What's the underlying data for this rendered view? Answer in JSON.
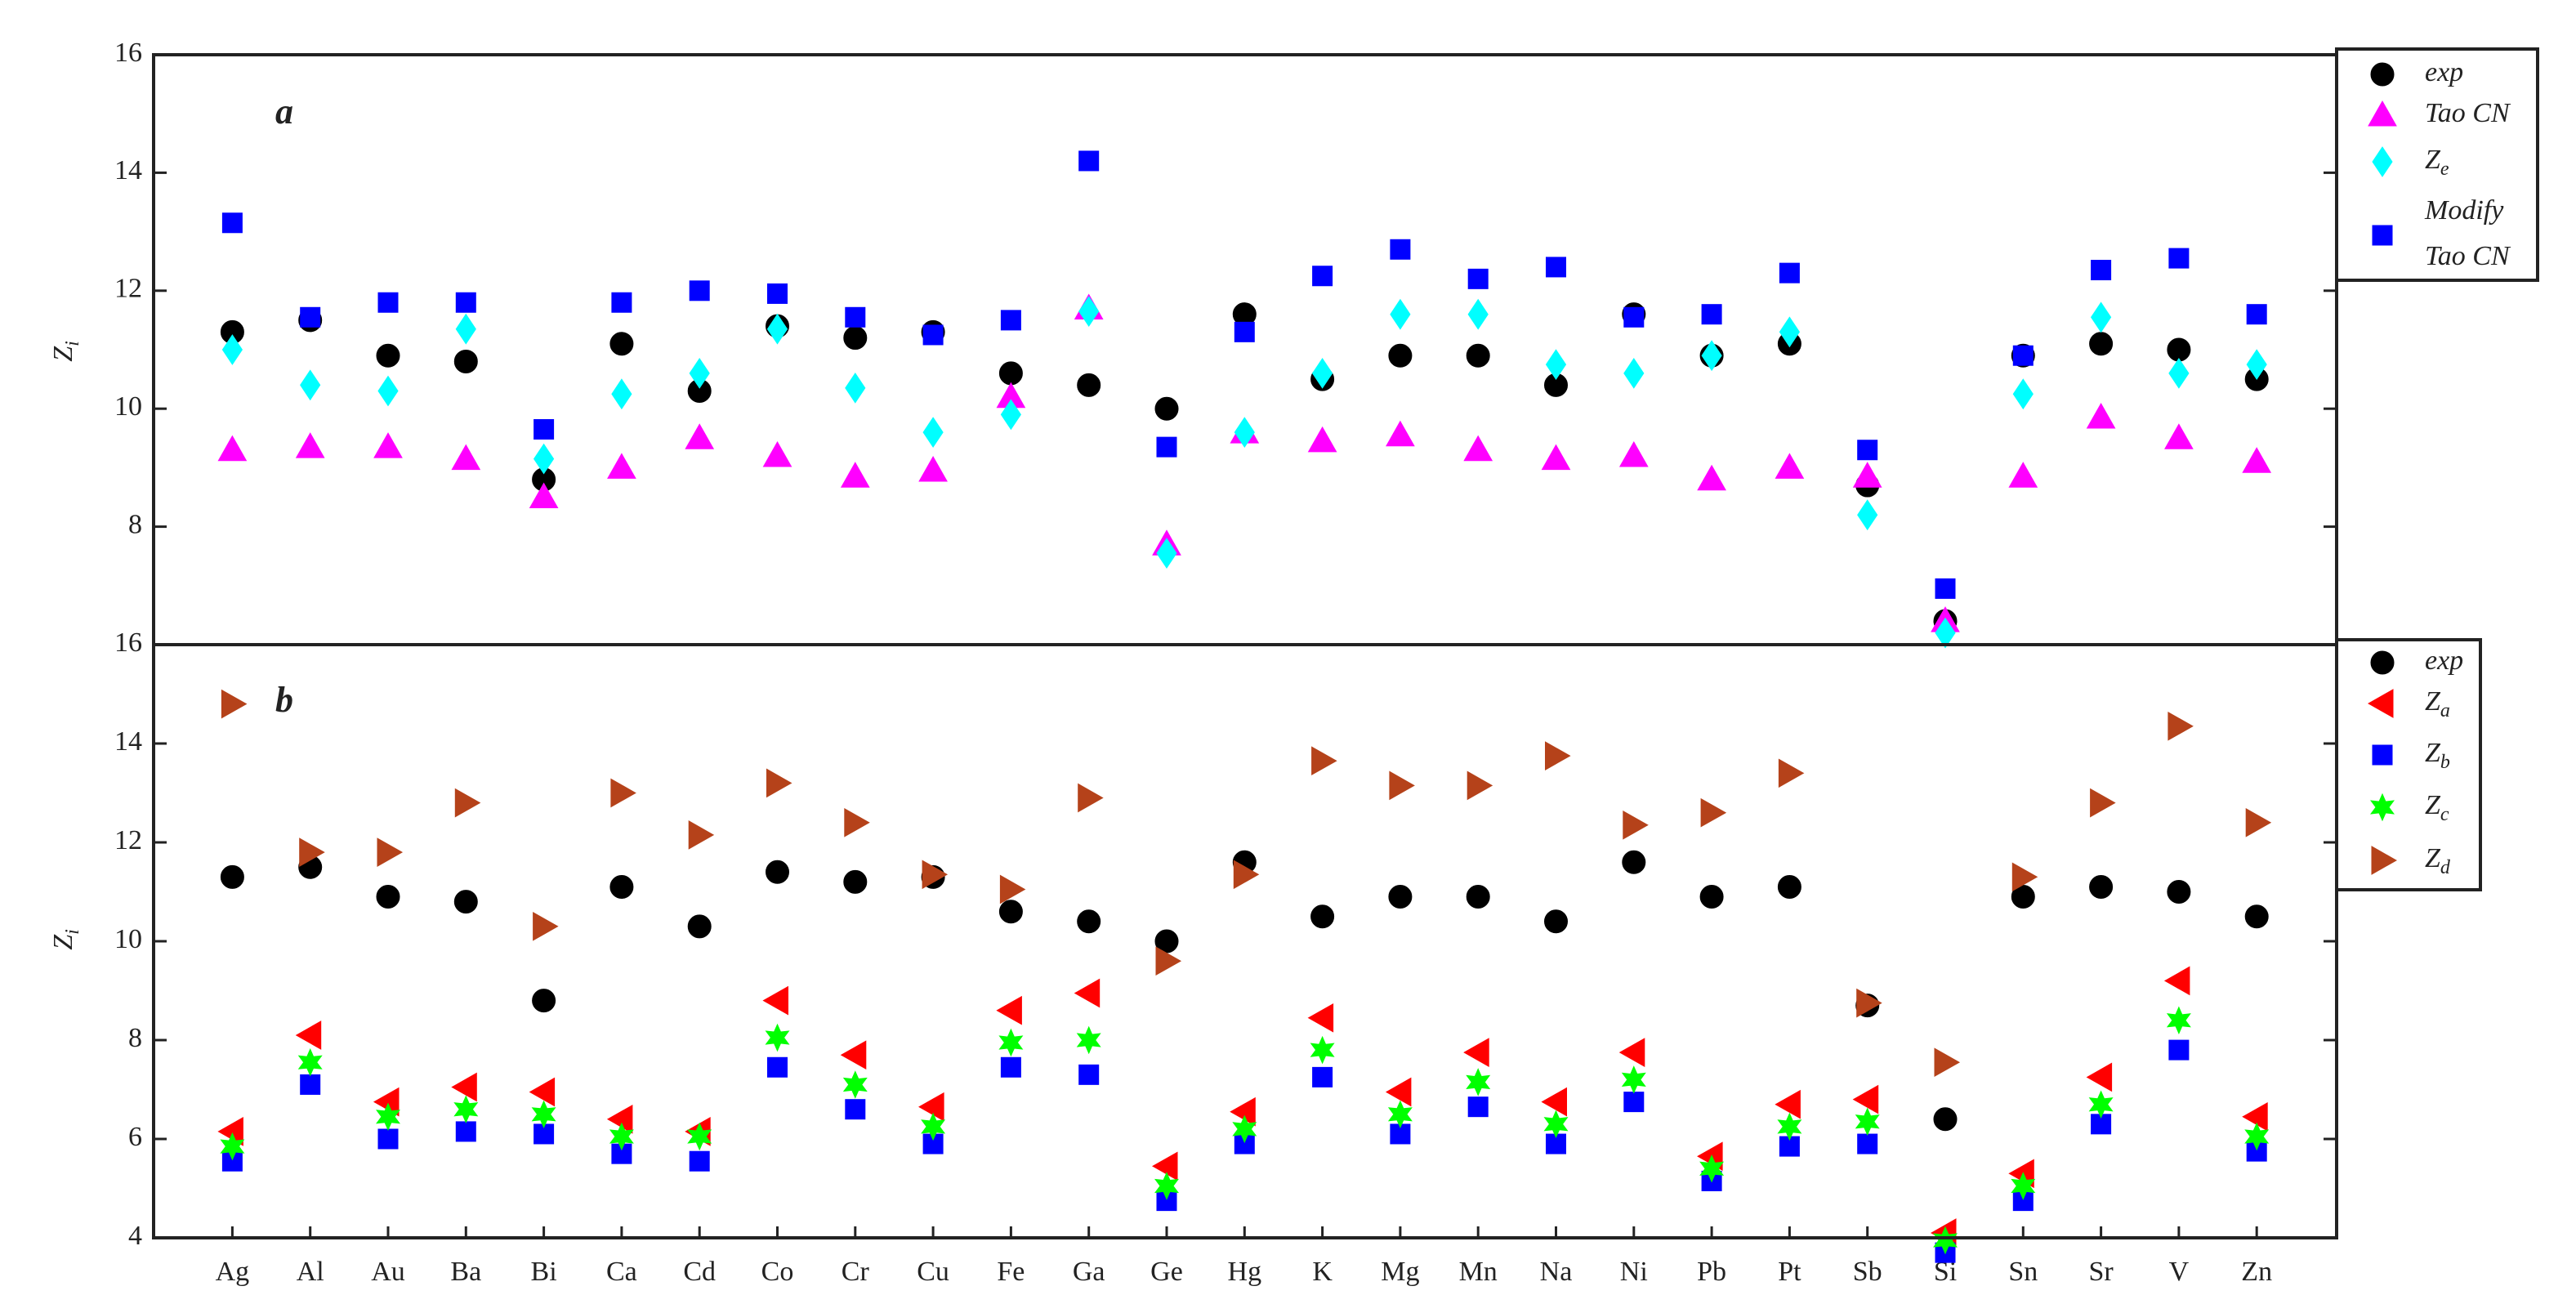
{
  "chart_data": [
    {
      "type": "scatter",
      "panel_label": "a",
      "y_label": "Zi",
      "ylim": [
        6,
        16
      ],
      "yticks": [
        8,
        10,
        12,
        14,
        16
      ],
      "series": [
        {
          "name": "exp",
          "color": "#000000",
          "marker": "circle",
          "values": [
            11.3,
            11.5,
            10.9,
            10.8,
            8.8,
            11.1,
            10.3,
            11.4,
            11.2,
            11.3,
            10.6,
            10.4,
            10.0,
            11.6,
            10.5,
            10.9,
            10.9,
            10.4,
            11.6,
            10.9,
            11.1,
            8.7,
            6.4,
            10.9,
            11.1,
            11.0,
            10.5
          ]
        },
        {
          "name": "Tao CN",
          "color": "#ff00ff",
          "marker": "triangle-up",
          "values": [
            9.3,
            9.35,
            9.35,
            9.15,
            8.5,
            9.0,
            9.5,
            9.2,
            8.85,
            8.95,
            10.2,
            11.7,
            7.7,
            9.6,
            9.45,
            9.55,
            9.3,
            9.15,
            9.2,
            8.8,
            9.0,
            8.85,
            6.4,
            8.85,
            9.85,
            9.5,
            9.1
          ]
        },
        {
          "name": "Ze",
          "color": "#00ffff",
          "marker": "diamond",
          "values": [
            11.0,
            10.4,
            10.3,
            11.35,
            9.15,
            10.25,
            10.6,
            11.35,
            10.35,
            9.6,
            9.9,
            11.65,
            7.55,
            9.6,
            10.6,
            11.6,
            11.6,
            10.75,
            10.6,
            10.9,
            11.3,
            8.2,
            6.2,
            10.25,
            11.55,
            10.6,
            10.75
          ]
        },
        {
          "name": "Modify Tao CN",
          "color": "#0000ff",
          "marker": "square",
          "values": [
            13.15,
            11.55,
            11.8,
            11.8,
            9.65,
            11.8,
            12.0,
            11.95,
            11.55,
            11.25,
            11.5,
            14.2,
            9.35,
            11.3,
            12.25,
            12.7,
            12.2,
            12.4,
            11.55,
            11.6,
            12.3,
            9.3,
            6.95,
            10.9,
            12.35,
            12.55,
            11.6
          ]
        }
      ]
    },
    {
      "type": "scatter",
      "panel_label": "b",
      "y_label": "Zi",
      "categories": [
        "Ag",
        "Al",
        "Au",
        "Ba",
        "Bi",
        "Ca",
        "Cd",
        "Co",
        "Cr",
        "Cu",
        "Fe",
        "Ga",
        "Ge",
        "Hg",
        "K",
        "Mg",
        "Mn",
        "Na",
        "Ni",
        "Pb",
        "Pt",
        "Sb",
        "Si",
        "Sn",
        "Sr",
        "V",
        "Zn"
      ],
      "ylim": [
        4,
        16
      ],
      "yticks": [
        4,
        6,
        8,
        10,
        12,
        14,
        16
      ],
      "series": [
        {
          "name": "exp",
          "color": "#000000",
          "marker": "circle",
          "values": [
            11.3,
            11.5,
            10.9,
            10.8,
            8.8,
            11.1,
            10.3,
            11.4,
            11.2,
            11.3,
            10.6,
            10.4,
            10.0,
            11.6,
            10.5,
            10.9,
            10.9,
            10.4,
            11.6,
            10.9,
            11.1,
            8.7,
            6.4,
            10.9,
            11.1,
            11.0,
            10.5
          ]
        },
        {
          "name": "Za",
          "color": "#ff0000",
          "marker": "triangle-left",
          "values": [
            6.15,
            8.1,
            6.75,
            7.05,
            6.95,
            6.4,
            6.15,
            8.8,
            7.7,
            6.65,
            8.6,
            8.95,
            5.45,
            6.55,
            8.45,
            6.95,
            7.75,
            6.75,
            7.75,
            5.65,
            6.7,
            6.8,
            4.1,
            5.3,
            7.25,
            9.2,
            6.45
          ]
        },
        {
          "name": "Zb",
          "color": "#0000ff",
          "marker": "square",
          "values": [
            5.55,
            7.1,
            6.0,
            6.15,
            6.1,
            5.7,
            5.55,
            7.45,
            6.6,
            5.9,
            7.45,
            7.3,
            4.75,
            5.9,
            7.25,
            6.1,
            6.65,
            5.9,
            6.75,
            5.15,
            5.85,
            5.9,
            3.7,
            4.75,
            6.3,
            7.8,
            5.75
          ]
        },
        {
          "name": "Zc",
          "color": "#00ff00",
          "marker": "hexagram",
          "values": [
            5.85,
            7.55,
            6.45,
            6.6,
            6.5,
            6.05,
            6.05,
            8.05,
            7.1,
            6.25,
            7.95,
            8.0,
            5.05,
            6.2,
            7.8,
            6.5,
            7.15,
            6.3,
            7.2,
            5.4,
            6.25,
            6.35,
            3.95,
            5.05,
            6.7,
            8.4,
            6.05
          ]
        },
        {
          "name": "Zd",
          "color": "#b5421a",
          "marker": "triangle-right",
          "values": [
            14.8,
            11.8,
            11.8,
            12.8,
            10.3,
            13.0,
            12.15,
            13.2,
            12.4,
            11.35,
            11.05,
            12.9,
            9.6,
            11.35,
            13.65,
            13.15,
            13.15,
            13.75,
            12.35,
            12.6,
            13.4,
            8.75,
            7.55,
            11.3,
            12.8,
            14.35,
            12.4
          ]
        }
      ]
    }
  ]
}
